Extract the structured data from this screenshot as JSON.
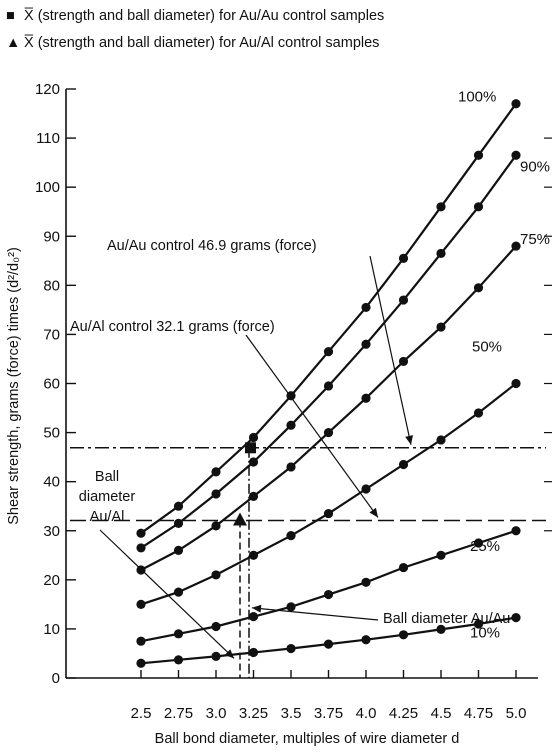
{
  "legend": [
    {
      "symbol": "■",
      "prefix": "X̅",
      "text": " (strength and ball diameter) for Au/Au control samples"
    },
    {
      "symbol": "▲",
      "prefix": "X̅",
      "text": " (strength and ball diameter) for Au/Al control samples"
    }
  ],
  "chart_data": {
    "type": "line",
    "xlabel": "Ball bond diameter, multiples of wire diameter d",
    "ylabel": "Shear strength, grams (force) times (d²/d₀²)",
    "xlim": [
      2.0,
      5.0
    ],
    "ylim": [
      0,
      120
    ],
    "x_ticks": [
      "2.5",
      "2.75",
      "3.0",
      "3.25",
      "3.5",
      "3.75",
      "4.0",
      "4.25",
      "4.5",
      "4.75",
      "5.0"
    ],
    "y_ticks": [
      "0",
      "10",
      "20",
      "30",
      "40",
      "50",
      "60",
      "70",
      "80",
      "90",
      "100",
      "110",
      "120"
    ],
    "series": [
      {
        "name": "100%",
        "x": [
          2.5,
          2.75,
          3.0,
          3.25,
          3.5,
          3.75,
          4.0,
          4.25,
          4.5,
          4.75,
          5.0
        ],
        "values": [
          29.5,
          35.0,
          42.0,
          49.0,
          57.5,
          66.5,
          75.5,
          85.5,
          96.0,
          106.5,
          117.0
        ]
      },
      {
        "name": "90%",
        "x": [
          2.5,
          2.75,
          3.0,
          3.25,
          3.5,
          3.75,
          4.0,
          4.25,
          4.5,
          4.75,
          5.0
        ],
        "values": [
          26.5,
          31.5,
          37.5,
          44.0,
          51.5,
          59.5,
          68.0,
          77.0,
          86.5,
          96.0,
          106.5
        ]
      },
      {
        "name": "75%",
        "x": [
          2.5,
          2.75,
          3.0,
          3.25,
          3.5,
          3.75,
          4.0,
          4.25,
          4.5,
          4.75,
          5.0
        ],
        "values": [
          22.0,
          26.0,
          31.0,
          37.0,
          43.0,
          50.0,
          57.0,
          64.5,
          71.5,
          79.5,
          88.0
        ]
      },
      {
        "name": "50%",
        "x": [
          2.5,
          2.75,
          3.0,
          3.25,
          3.5,
          3.75,
          4.0,
          4.25,
          4.5,
          4.75,
          5.0
        ],
        "values": [
          15.0,
          17.5,
          21.0,
          25.0,
          29.0,
          33.5,
          38.5,
          43.5,
          48.5,
          54.0,
          60.0
        ]
      },
      {
        "name": "25%",
        "x": [
          2.5,
          2.75,
          3.0,
          3.25,
          3.5,
          3.75,
          4.0,
          4.25,
          4.5,
          4.75,
          5.0
        ],
        "values": [
          7.5,
          9.0,
          10.5,
          12.5,
          14.5,
          17.0,
          19.5,
          22.5,
          25.0,
          27.5,
          30.0
        ]
      },
      {
        "name": "10%",
        "x": [
          2.5,
          2.75,
          3.0,
          3.25,
          3.5,
          3.75,
          4.0,
          4.25,
          4.5,
          4.75,
          5.0
        ],
        "values": [
          3.0,
          3.7,
          4.4,
          5.2,
          6.0,
          6.9,
          7.8,
          8.8,
          9.9,
          11.0,
          12.3
        ]
      }
    ],
    "reference_lines": [
      {
        "y": 46.9,
        "style": "dash-dot"
      },
      {
        "y": 32.1,
        "style": "dashed"
      }
    ],
    "vertical_lines": [
      {
        "x": 3.22,
        "style": "dash-dot",
        "y_top": 46.9
      },
      {
        "x": 3.16,
        "style": "dashed",
        "y_top": 32.1
      }
    ],
    "markers": [
      {
        "shape": "square",
        "x": 3.23,
        "y": 46.9
      },
      {
        "shape": "triangle",
        "x": 3.16,
        "y": 32.1
      }
    ],
    "annotations": {
      "au_au_control": "Au/Au control 46.9 grams (force)",
      "au_al_control": "Au/Al control 32.1 grams (force)",
      "ball_dia_au_al": [
        "Ball",
        "diameter",
        "Au/Al"
      ],
      "ball_dia_au_au": "Ball diameter Au/Au"
    },
    "grid": false
  }
}
